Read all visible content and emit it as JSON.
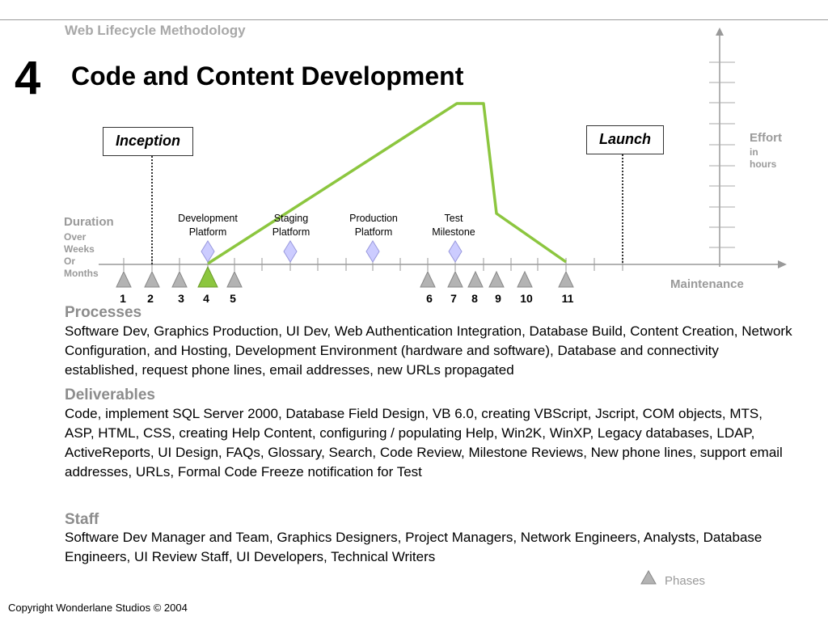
{
  "header_label": "Web Lifecycle Methodology",
  "section_number": "4",
  "title": "Code and Content Development",
  "diagram": {
    "duration_label": "Duration",
    "duration_sub": [
      "Over",
      "Weeks",
      "Or",
      "Months"
    ],
    "effort_label": "Effort",
    "effort_sub": [
      "in",
      "hours"
    ],
    "maintenance_label": "Maintenance",
    "inception_label": "Inception",
    "launch_label": "Launch",
    "milestones": [
      {
        "line1": "Development",
        "line2": "Platform"
      },
      {
        "line1": "Staging",
        "line2": "Platform"
      },
      {
        "line1": "Production",
        "line2": "Platform"
      },
      {
        "line1": "Test",
        "line2": "Milestone"
      }
    ],
    "phase_numbers": [
      "1",
      "2",
      "3",
      "4",
      "5",
      "6",
      "7",
      "8",
      "9",
      "10",
      "11"
    ],
    "current_phase": "4",
    "colors": {
      "effort_line": "#8cc63f",
      "current_phase": "#8cc63f",
      "phase_marker": "#b3b3b3",
      "milestone_diamond": "#ccccff",
      "axis": "#999999"
    }
  },
  "processes": {
    "heading": "Processes",
    "body": "Software Dev, Graphics Production, UI Dev, Web Authentication Integration, Database Build, Content Creation, Network Configuration, and Hosting, Development Environment (hardware and software), Database and connectivity established, request phone lines, email addresses, new URLs propagated"
  },
  "deliverables": {
    "heading": "Deliverables",
    "body": "Code, implement SQL Server 2000, Database Field Design, VB 6.0, creating VBScript, Jscript, COM objects, MTS, ASP, HTML, CSS, creating Help Content, configuring / populating Help, Win2K, WinXP, Legacy databases, LDAP, ActiveReports, UI Design, FAQs, Glossary, Search, Code Review, Milestone Reviews, New phone lines, support email addresses, URLs, Formal Code Freeze notification for Test"
  },
  "staff": {
    "heading": "Staff",
    "body": "Software Dev Manager and Team, Graphics Designers, Project Managers, Network Engineers, Analysts, Database Engineers, UI Review Staff, UI Developers, Technical Writers"
  },
  "legend": {
    "phases_label": "Phases"
  },
  "copyright": "Copyright Wonderlane Studios © 2004"
}
